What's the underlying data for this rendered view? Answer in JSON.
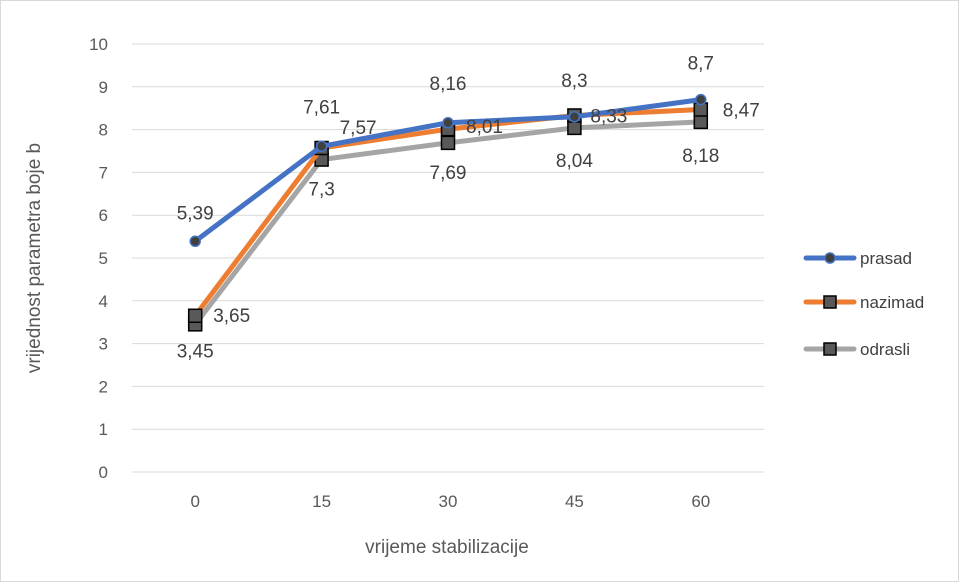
{
  "chart_data": {
    "type": "line",
    "x": [
      0,
      15,
      30,
      45,
      60
    ],
    "xlabel": "vrijeme stabilizacije",
    "ylabel": "vrijednost  parametra boje b",
    "ylim": [
      0,
      10
    ],
    "yticks": [
      0,
      1,
      2,
      3,
      4,
      5,
      6,
      7,
      8,
      9,
      10
    ],
    "xtick_labels": [
      "0",
      "15",
      "30",
      "45",
      "60"
    ],
    "grid": "horizontal",
    "legend_position": "right",
    "series": [
      {
        "name": "prasad",
        "values": [
          5.39,
          7.61,
          8.16,
          8.3,
          8.7
        ],
        "labels": [
          "5,39",
          "7,61",
          "8,16",
          "8,3",
          "8,7"
        ],
        "color": "#4472C4",
        "marker": "circle"
      },
      {
        "name": "nazimad",
        "values": [
          3.65,
          7.57,
          8.01,
          8.33,
          8.47
        ],
        "labels": [
          "3,65",
          "7,57",
          "8,01",
          "8,33",
          "8,47"
        ],
        "color": "#ED7D31",
        "marker": "square"
      },
      {
        "name": "odrasli",
        "values": [
          3.45,
          7.3,
          7.69,
          8.04,
          8.18
        ],
        "labels": [
          "3,45",
          "7,3",
          "7,69",
          "8,04",
          "8,18"
        ],
        "color": "#A5A5A5",
        "marker": "square"
      }
    ]
  }
}
